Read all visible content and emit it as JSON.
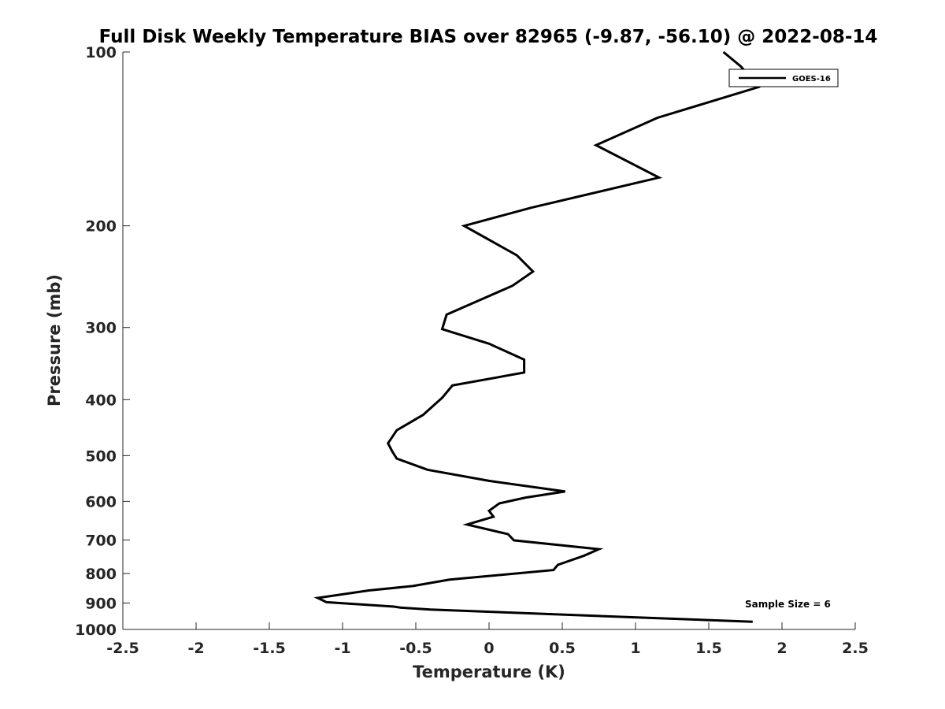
{
  "chart_data": {
    "type": "line",
    "title": "Full Disk Weekly Temperature BIAS over 82965 (-9.87, -56.10) @ 2022-08-14",
    "xlabel": "Temperature (K)",
    "ylabel": "Pressure (mb)",
    "xlim": [
      -2.5,
      2.5
    ],
    "ylim": [
      100,
      1000
    ],
    "y_scale": "log",
    "y_reversed": true,
    "x_ticks": [
      -2.5,
      -2,
      -1.5,
      -1,
      -0.5,
      0,
      0.5,
      1,
      1.5,
      2,
      2.5
    ],
    "x_tick_labels": [
      "-2.5",
      "-2",
      "-1.5",
      "-1",
      "-0.5",
      "0",
      "0.5",
      "1",
      "1.5",
      "2",
      "2.5"
    ],
    "y_ticks": [
      100,
      200,
      300,
      400,
      500,
      600,
      700,
      800,
      900,
      1000
    ],
    "y_tick_labels": [
      "100",
      "200",
      "300",
      "400",
      "500",
      "600",
      "700",
      "800",
      "900",
      "1000"
    ],
    "grid": false,
    "legend_position": "top-right",
    "series": [
      {
        "name": "GOES-16",
        "color": "#000000",
        "x": [
          1.6,
          1.72,
          1.84,
          1.15,
          0.73,
          1.16,
          0.29,
          -0.17,
          0.19,
          0.3,
          0.16,
          -0.29,
          -0.32,
          0.0,
          0.24,
          0.24,
          -0.25,
          -0.32,
          -0.45,
          -0.63,
          -0.69,
          -0.66,
          -0.63,
          -0.42,
          0.0,
          0.52,
          0.25,
          0.07,
          0.0,
          0.03,
          -0.15,
          0.13,
          0.17,
          0.75,
          0.65,
          0.47,
          0.44,
          -0.27,
          -0.52,
          -0.82,
          -1.17,
          -1.11,
          -0.65,
          -0.6,
          -0.4,
          1.8
        ],
        "y": [
          100,
          106,
          115,
          130,
          145,
          165,
          186,
          200,
          225,
          240,
          254,
          285,
          302,
          320,
          341,
          359,
          378,
          397,
          425,
          452,
          476,
          492,
          506,
          529,
          553,
          577,
          591,
          605,
          623,
          638,
          658,
          684,
          701,
          726,
          745,
          773,
          789,
          820,
          841,
          856,
          882,
          897,
          913,
          917,
          924,
          970
        ]
      }
    ],
    "annotation": "Sample Size = 6"
  }
}
